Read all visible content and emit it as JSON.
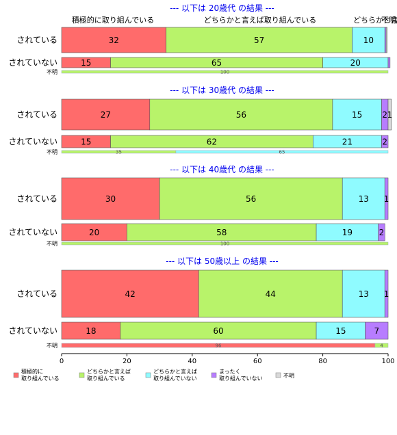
{
  "chart_data": {
    "type": "bar",
    "orientation": "horizontal-stacked",
    "xlim": [
      0,
      100
    ],
    "x_ticks": [
      "0",
      "20",
      "40",
      "60",
      "80",
      "100"
    ],
    "categories": [
      {
        "label": "積極的に\n取り組んでいる",
        "color": "#ff6b6b"
      },
      {
        "label": "どちらかと言えば\n取り組んでいる",
        "color": "#b8f36a"
      },
      {
        "label": "どちらかと言えば\n取り組んでいない",
        "color": "#8ffbff"
      },
      {
        "label": "まったく\n取り組んでいない",
        "color": "#b77dff"
      },
      {
        "label": "不明",
        "color": "#d9d9d9"
      }
    ],
    "top_labels": [
      "積極的に取り組んでいる",
      "どちらかと言えば取り組んでいる",
      "どちらかと言",
      "不明"
    ],
    "groups": [
      {
        "title": "--- 以下は 20歳代 の結果 ---",
        "rows": [
          {
            "label": "されている",
            "values": [
              32,
              57,
              10,
              0.4,
              0.3
            ],
            "labels": [
              "32",
              "57",
              "10",
              "",
              ""
            ]
          },
          {
            "label": "されていない",
            "values": [
              15,
              65,
              20,
              0.6,
              0
            ],
            "labels": [
              "15",
              "65",
              "20",
              "",
              ""
            ]
          },
          {
            "label": "不明",
            "values": [
              0,
              100,
              0,
              0,
              0
            ],
            "labels": [
              "",
              "100",
              "",
              "",
              ""
            ]
          }
        ]
      },
      {
        "title": "--- 以下は 30歳代 の結果 ---",
        "rows": [
          {
            "label": "されている",
            "values": [
              27,
              56,
              15,
              2,
              1
            ],
            "labels": [
              "27",
              "56",
              "15",
              "2",
              "1"
            ]
          },
          {
            "label": "されていない",
            "values": [
              15,
              62,
              21,
              2,
              0
            ],
            "labels": [
              "15",
              "62",
              "21",
              "2",
              ""
            ]
          },
          {
            "label": "不明",
            "values": [
              0,
              35,
              65,
              0,
              0
            ],
            "labels": [
              "",
              "35",
              "65",
              "",
              ""
            ]
          }
        ]
      },
      {
        "title": "--- 以下は 40歳代 の結果 ---",
        "rows": [
          {
            "label": "されている",
            "values": [
              30,
              56,
              13,
              1,
              0
            ],
            "labels": [
              "30",
              "56",
              "13",
              "1",
              ""
            ]
          },
          {
            "label": "されていない",
            "values": [
              20,
              58,
              19,
              2,
              0
            ],
            "labels": [
              "20",
              "58",
              "19",
              "2",
              ""
            ]
          },
          {
            "label": "不明",
            "values": [
              0,
              100,
              0,
              0,
              0
            ],
            "labels": [
              "",
              "100",
              "",
              "",
              ""
            ]
          }
        ]
      },
      {
        "title": "--- 以下は 50歳以上 の結果 ---",
        "rows": [
          {
            "label": "されている",
            "values": [
              42,
              44,
              13,
              1,
              0
            ],
            "labels": [
              "42",
              "44",
              "13",
              "1",
              ""
            ]
          },
          {
            "label": "されていない",
            "values": [
              18,
              60,
              15,
              7,
              0
            ],
            "labels": [
              "18",
              "60",
              "15",
              "7",
              ""
            ]
          },
          {
            "label": "不明",
            "values": [
              96,
              4,
              0,
              0,
              0
            ],
            "labels": [
              "96",
              "4",
              "",
              "",
              ""
            ]
          }
        ]
      }
    ]
  }
}
